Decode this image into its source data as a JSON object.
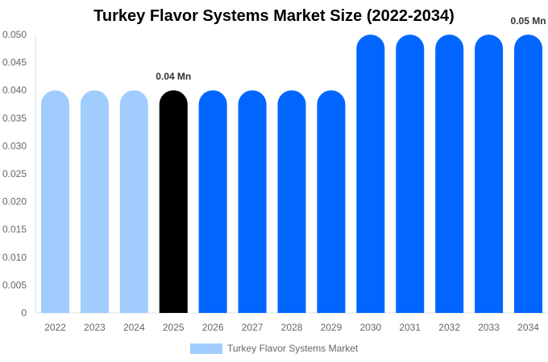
{
  "chart_data": {
    "type": "bar",
    "title": "Turkey Flavor Systems Market Size (2022-2034)",
    "xlabel": "",
    "ylabel": "",
    "categories": [
      "2022",
      "2023",
      "2024",
      "2025",
      "2026",
      "2027",
      "2028",
      "2029",
      "2030",
      "2031",
      "2032",
      "2033",
      "2034"
    ],
    "series": [
      {
        "name": "Turkey Flavor Systems Market",
        "values": [
          0.04,
          0.04,
          0.04,
          0.04,
          0.04,
          0.04,
          0.04,
          0.04,
          0.05,
          0.05,
          0.05,
          0.05,
          0.05
        ]
      }
    ],
    "bar_colors": [
      "#a0cdfd",
      "#a0cdfd",
      "#a0cdfd",
      "#000000",
      "#0066ff",
      "#0066ff",
      "#0066ff",
      "#0066ff",
      "#0066ff",
      "#0066ff",
      "#0066ff",
      "#0066ff",
      "#0066ff"
    ],
    "annotations": [
      {
        "category": "2025",
        "text": "0.04 Mn"
      },
      {
        "category": "2034",
        "text": "0.05 Mn"
      }
    ],
    "yticks": [
      "0",
      "0.005",
      "0.010",
      "0.015",
      "0.020",
      "0.025",
      "0.030",
      "0.035",
      "0.040",
      "0.045",
      "0.050"
    ],
    "ylim": [
      0,
      0.05
    ],
    "grid": false,
    "legend_position": "bottom"
  },
  "legend": {
    "label": "Turkey Flavor Systems Market",
    "color": "#a0cdfd"
  }
}
